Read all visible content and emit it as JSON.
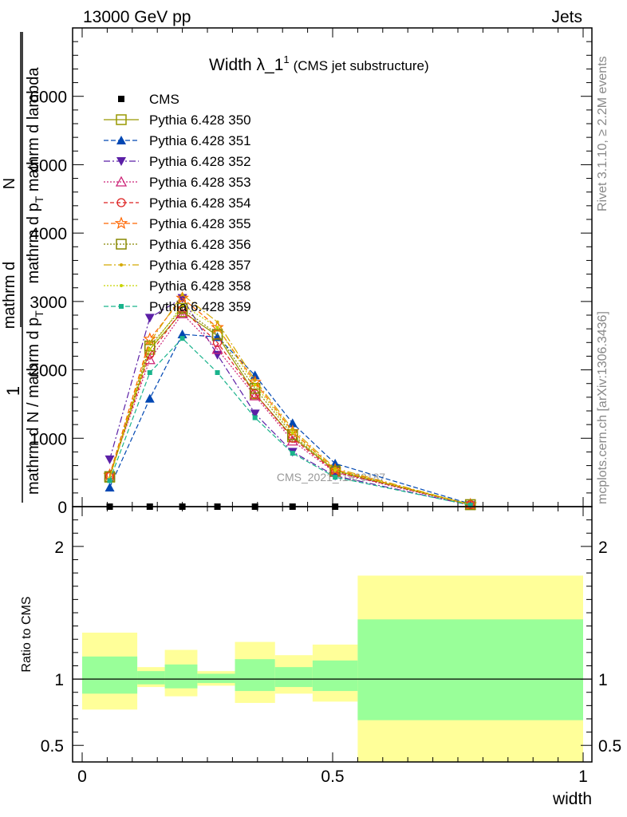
{
  "header": {
    "left": "13000 GeV pp",
    "right": "Jets"
  },
  "side": {
    "rivet": "Rivet 3.1.10, ≥ 2.2M events",
    "mcplots": "mcplots.cern.ch [arXiv:1306.3436]"
  },
  "chart_data": {
    "type": "line",
    "title_main": "Width λ_1",
    "title_sup": "1",
    "title_paren": "(CMS jet substructure)",
    "watermark": "CMS_2021_I1920187",
    "ylabel_main": {
      "one": "1",
      "num": "mathrm d N / mathrm d p",
      "num_sub": "T",
      "den": "mathrm d N / mathrm d p",
      "den_sub": "T",
      "lines": [
        "mathrm d",
        "N",
        "mathrm d p",
        "T",
        "mathrm d lambda"
      ]
    },
    "ylabel_ratio": "Ratio to CMS",
    "xlabel": "width",
    "xlim": [
      0,
      1
    ],
    "ylim": [
      0,
      7000
    ],
    "ratio_ylim": [
      0.375,
      2.3
    ],
    "x_ticks": [
      "0",
      "0.5",
      "1"
    ],
    "y_ticks": [
      "0",
      "1000",
      "2000",
      "3000",
      "4000",
      "5000",
      "6000"
    ],
    "ratio_ticks": [
      "0.5",
      "1",
      "2"
    ],
    "ratio_tick_values": [
      0.5,
      1,
      2
    ],
    "y_tick_values": [
      0,
      1000,
      2000,
      3000,
      4000,
      5000,
      6000
    ],
    "x_tick_values": [
      0,
      0.5,
      1
    ],
    "x": [
      0.055,
      0.135,
      0.2,
      0.27,
      0.345,
      0.42,
      0.505,
      0.775
    ],
    "data": {
      "name": "CMS",
      "x": [
        0.055,
        0.135,
        0.2,
        0.27,
        0.345,
        0.42,
        0.505
      ],
      "values": [
        0,
        0,
        0,
        0,
        0,
        0,
        0
      ]
    },
    "series": [
      {
        "name": "Pythia 6.428 350",
        "color": "#999900",
        "dash": "",
        "marker": "square-open",
        "values": [
          430,
          2300,
          2850,
          2500,
          1650,
          1020,
          530,
          30
        ]
      },
      {
        "name": "Pythia 6.428 351",
        "color": "#0047b3",
        "dash": "6,3",
        "marker": "triangle-up",
        "values": [
          280,
          1580,
          2520,
          2480,
          1920,
          1220,
          630,
          40
        ]
      },
      {
        "name": "Pythia 6.428 352",
        "color": "#5b1fa6",
        "dash": "8,3,2,3",
        "marker": "triangle-down",
        "values": [
          690,
          2760,
          3050,
          2220,
          1360,
          800,
          450,
          20
        ]
      },
      {
        "name": "Pythia 6.428 353",
        "color": "#cc2277",
        "dash": "2,2",
        "marker": "triangle-open",
        "values": [
          470,
          2150,
          2820,
          2300,
          1620,
          960,
          500,
          25
        ]
      },
      {
        "name": "Pythia 6.428 354",
        "color": "#dd2222",
        "dash": "5,3",
        "marker": "circle-open",
        "values": [
          450,
          2230,
          2880,
          2400,
          1650,
          1000,
          510,
          28
        ]
      },
      {
        "name": "Pythia 6.428 355",
        "color": "#ff6600",
        "dash": "6,3",
        "marker": "star-open",
        "values": [
          460,
          2450,
          3050,
          2620,
          1820,
          1100,
          540,
          30
        ]
      },
      {
        "name": "Pythia 6.428 356",
        "color": "#888800",
        "dash": "2,2",
        "marker": "square-open",
        "values": [
          440,
          2350,
          2900,
          2520,
          1730,
          1050,
          520,
          28
        ]
      },
      {
        "name": "Pythia 6.428 357",
        "color": "#d4a900",
        "dash": "10,3,2,3",
        "marker": "dot",
        "values": [
          420,
          2400,
          3100,
          2700,
          1850,
          1130,
          560,
          30
        ]
      },
      {
        "name": "Pythia 6.428 358",
        "color": "#c8d400",
        "dash": "2,2",
        "marker": "dot",
        "values": [
          410,
          2300,
          2950,
          2620,
          1780,
          1080,
          530,
          28
        ]
      },
      {
        "name": "Pythia 6.428 359",
        "color": "#1ab38c",
        "dash": "6,3",
        "marker": "square-small",
        "values": [
          380,
          1960,
          2460,
          1960,
          1300,
          780,
          430,
          22
        ]
      }
    ],
    "ratio_bands": [
      {
        "x0": 0.0,
        "x1": 0.11,
        "y_lo": 0.77,
        "y_hi": 1.35,
        "g_lo": 0.89,
        "g_hi": 1.17
      },
      {
        "x0": 0.11,
        "x1": 0.165,
        "y_lo": 0.94,
        "y_hi": 1.09,
        "g_lo": 0.96,
        "g_hi": 1.06
      },
      {
        "x0": 0.165,
        "x1": 0.23,
        "y_lo": 0.87,
        "y_hi": 1.22,
        "g_lo": 0.93,
        "g_hi": 1.11
      },
      {
        "x0": 0.23,
        "x1": 0.305,
        "y_lo": 0.95,
        "y_hi": 1.06,
        "g_lo": 0.97,
        "g_hi": 1.04
      },
      {
        "x0": 0.305,
        "x1": 0.385,
        "y_lo": 0.82,
        "y_hi": 1.28,
        "g_lo": 0.91,
        "g_hi": 1.15
      },
      {
        "x0": 0.385,
        "x1": 0.46,
        "y_lo": 0.89,
        "y_hi": 1.18,
        "g_lo": 0.94,
        "g_hi": 1.09
      },
      {
        "x0": 0.46,
        "x1": 0.55,
        "y_lo": 0.83,
        "y_hi": 1.26,
        "g_lo": 0.91,
        "g_hi": 1.14
      },
      {
        "x0": 0.55,
        "x1": 1.0,
        "y_lo": 0.375,
        "y_hi": 1.78,
        "g_lo": 0.69,
        "g_hi": 1.45
      }
    ],
    "band_colors": {
      "yellow": "#ffff99",
      "green": "#99ff99"
    },
    "legend_placement": "top-left"
  }
}
